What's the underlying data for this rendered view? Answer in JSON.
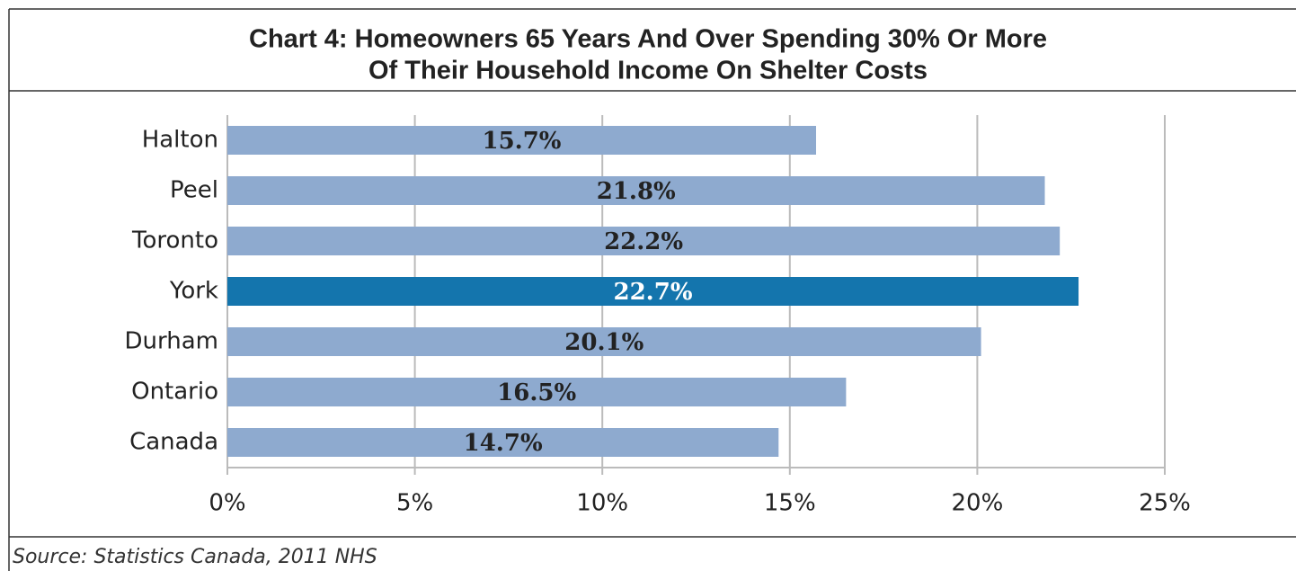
{
  "chart_data": {
    "type": "barh",
    "title": [
      "Chart 4: Homeowners 65 Years And Over Spending 30% Or More",
      "Of Their Household Income On Shelter Costs"
    ],
    "categories": [
      "Halton",
      "Peel",
      "Toronto",
      "York",
      "Durham",
      "Ontario",
      "Canada"
    ],
    "values": [
      15.7,
      21.8,
      22.2,
      22.7,
      20.1,
      16.5,
      14.7
    ],
    "value_labels": [
      "15.7%",
      "21.8%",
      "22.2%",
      "22.7%",
      "20.1%",
      "16.5%",
      "14.7%"
    ],
    "colors": [
      "#8eaacf",
      "#8eaacf",
      "#8eaacf",
      "#1475ad",
      "#8eaacf",
      "#8eaacf",
      "#8eaacf"
    ],
    "xlim": [
      0,
      25
    ],
    "xticks": [
      {
        "value": 0,
        "label": "0%"
      },
      {
        "value": 5,
        "label": "5%"
      },
      {
        "value": 10,
        "label": "10%"
      },
      {
        "value": 15,
        "label": "15%"
      },
      {
        "value": 20,
        "label": "20%"
      },
      {
        "value": 25,
        "label": "25%"
      }
    ],
    "grid": true,
    "source": "Source: Statistics Canada, 2011 NHS"
  }
}
